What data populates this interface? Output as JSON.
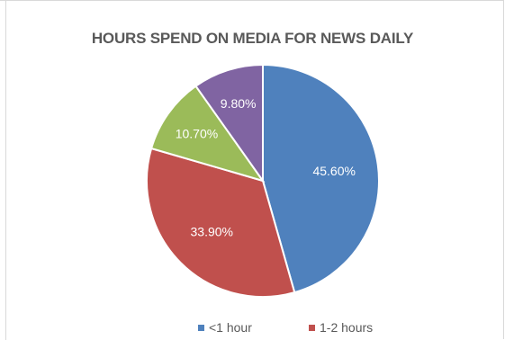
{
  "chart_data": {
    "type": "pie",
    "title": "HOURS SPEND ON MEDIA FOR NEWS DAILY",
    "slices": [
      {
        "label": "45.60%",
        "value": 45.6,
        "color": "#4f81bd",
        "legend": "<1 hour"
      },
      {
        "label": "33.90%",
        "value": 33.9,
        "color": "#c0504d",
        "legend": "1-2 hours"
      },
      {
        "label": "10.70%",
        "value": 10.7,
        "color": "#9bbb59",
        "legend": ""
      },
      {
        "label": "9.80%",
        "value": 9.8,
        "color": "#8064a2",
        "legend": ""
      }
    ],
    "legend_position": "bottom",
    "legend_visible": [
      "<1 hour",
      "1-2 hours"
    ]
  }
}
